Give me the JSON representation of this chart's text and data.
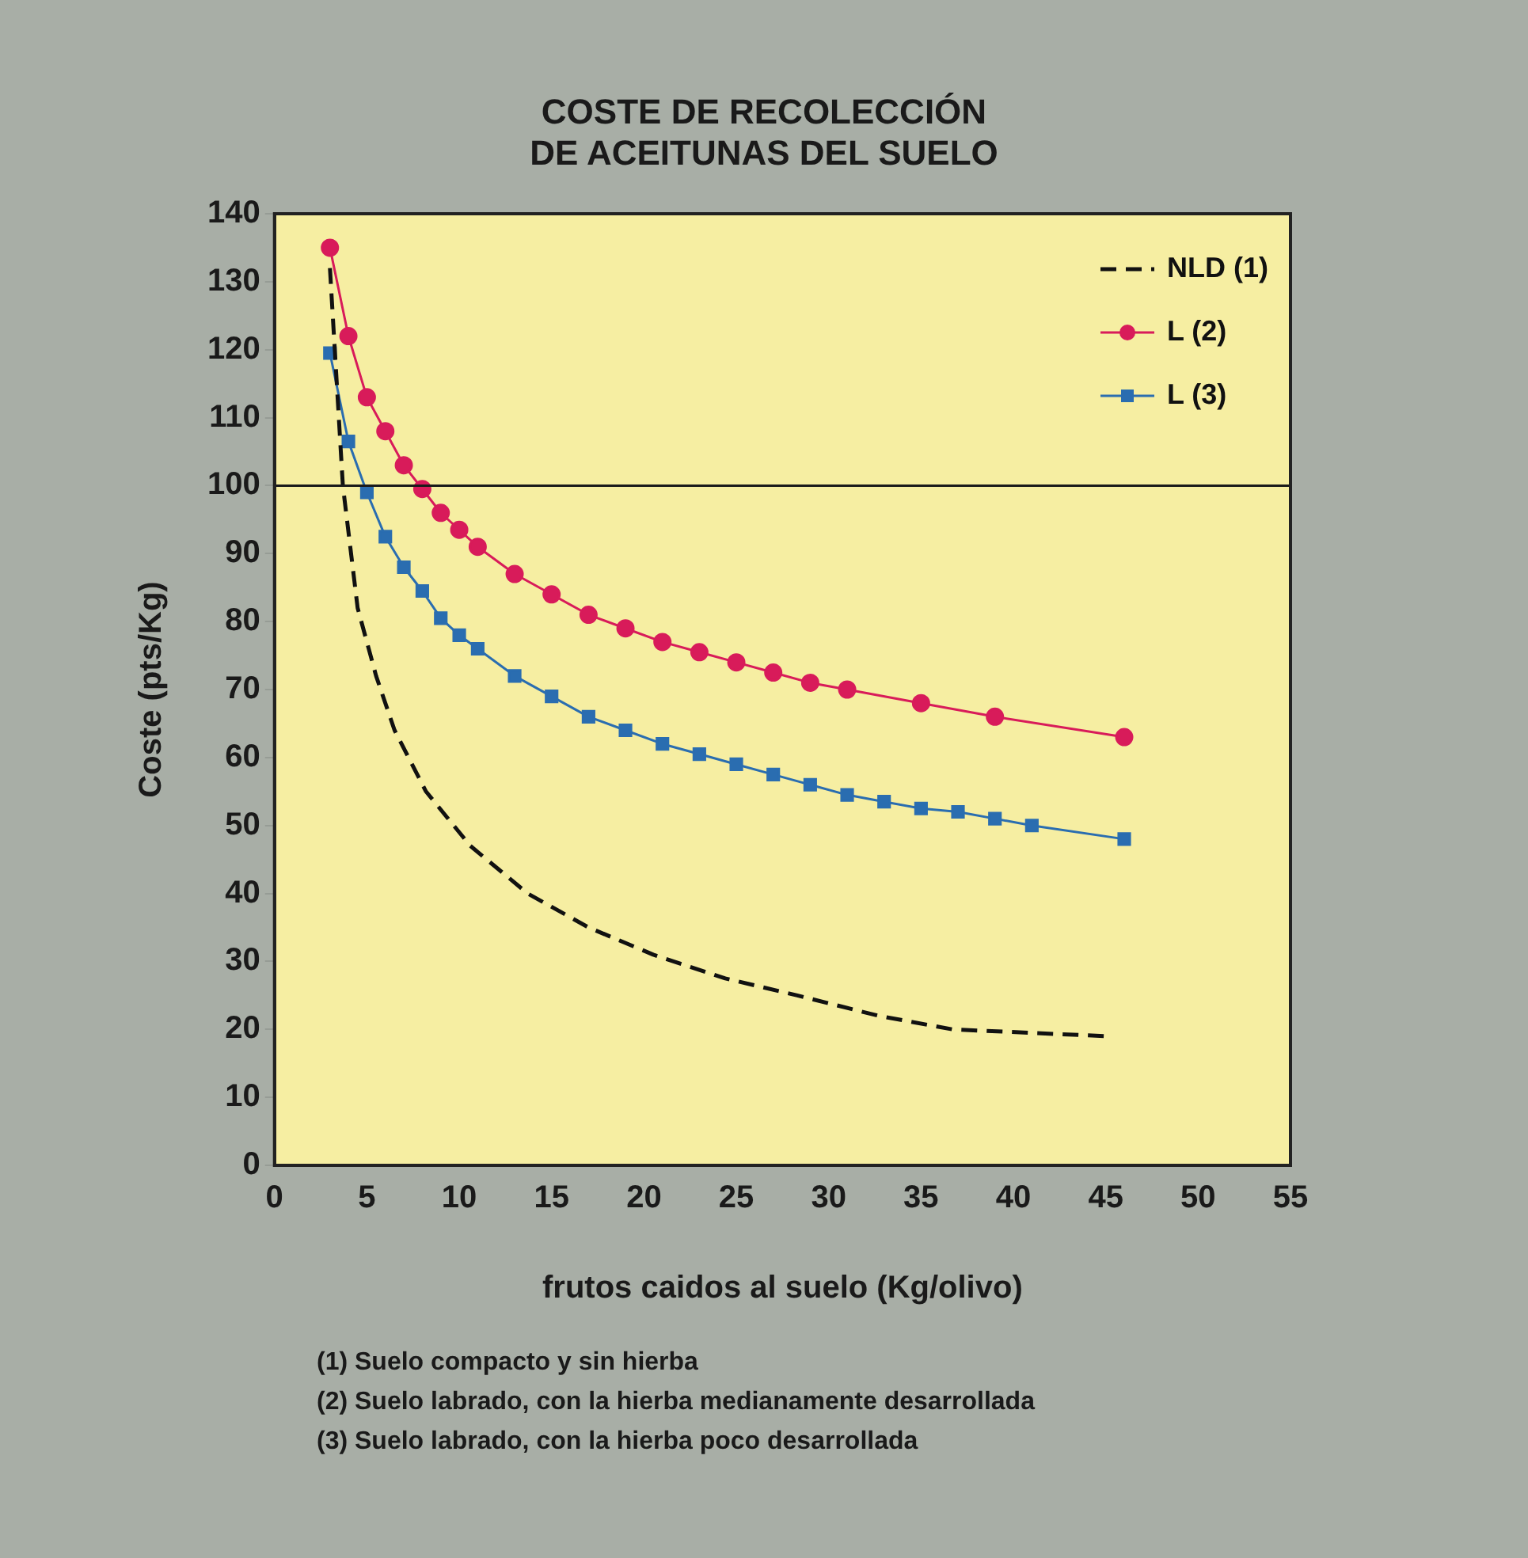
{
  "chart_data": {
    "type": "line",
    "title": "COSTE DE RECOLECCIÓN\nDE ACEITUNAS DEL SUELO",
    "xlabel": "frutos caidos al suelo (Kg/olivo)",
    "ylabel": "Coste (pts/Kg)",
    "xlim": [
      0,
      55
    ],
    "xticks": [
      0,
      5,
      10,
      15,
      20,
      25,
      30,
      35,
      40,
      45,
      50,
      55
    ],
    "ylim": [
      0,
      140
    ],
    "yticks": [
      0,
      10,
      20,
      30,
      40,
      50,
      60,
      70,
      80,
      90,
      100,
      110,
      120,
      130,
      140
    ],
    "grid": false,
    "legend": "top right",
    "ref_lines": [
      {
        "axis": "y",
        "value": 100,
        "color": "#1a1a1a"
      }
    ],
    "series": [
      {
        "name": "NLD (1)",
        "color": "#111111",
        "marker": "none",
        "line_style": "dashed",
        "x": [
          3,
          3.7,
          4.5,
          5.5,
          6.5,
          8.2,
          10.6,
          13.7,
          17,
          20.5,
          24.4,
          28.3,
          32.7,
          36.7,
          45
        ],
        "values": [
          132,
          100,
          82,
          72,
          64,
          55,
          47,
          40,
          35,
          31,
          27.5,
          25,
          22,
          20,
          19
        ]
      },
      {
        "name": "L (2)",
        "color": "#d81b5a",
        "marker": "circle",
        "line_style": "solid",
        "x": [
          3,
          4,
          5,
          6,
          7,
          8,
          9,
          10,
          11,
          13,
          15,
          17,
          19,
          21,
          23,
          25,
          27,
          29,
          31,
          35,
          39,
          46
        ],
        "values": [
          135,
          122,
          113,
          108,
          103,
          99.5,
          96,
          93.5,
          91,
          87,
          84,
          81,
          79,
          77,
          75.5,
          74,
          72.5,
          71,
          70,
          68,
          66,
          63
        ]
      },
      {
        "name": "L (3)",
        "color": "#2a6db0",
        "marker": "square",
        "line_style": "solid",
        "x": [
          3,
          4,
          5,
          6,
          7,
          8,
          9,
          10,
          11,
          13,
          15,
          17,
          19,
          21,
          23,
          25,
          27,
          29,
          31,
          33,
          35,
          37,
          39,
          41,
          46
        ],
        "values": [
          119.5,
          106.5,
          99,
          92.5,
          88,
          84.5,
          80.5,
          78,
          76,
          72,
          69,
          66,
          64,
          62,
          60.5,
          59,
          57.5,
          56,
          54.5,
          53.5,
          52.5,
          52,
          51,
          50,
          48
        ]
      }
    ],
    "annotations": [
      "(1) Suelo compacto y sin hierba",
      "(2) Suelo labrado, con la hierba medianamente desarrollada",
      "(3) Suelo labrado, con la hierba poco desarrollada"
    ]
  }
}
